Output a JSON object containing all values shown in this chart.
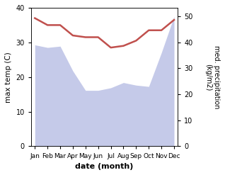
{
  "months": [
    "Jan",
    "Feb",
    "Mar",
    "Apr",
    "May",
    "Jun",
    "Jul",
    "Aug",
    "Sep",
    "Oct",
    "Nov",
    "Dec"
  ],
  "x": [
    0,
    1,
    2,
    3,
    4,
    5,
    6,
    7,
    8,
    9,
    10,
    11
  ],
  "temp_max": [
    37.0,
    35.0,
    35.0,
    32.0,
    31.5,
    31.5,
    28.5,
    29.0,
    30.5,
    33.5,
    33.5,
    36.5
  ],
  "precip_mm": [
    390,
    380,
    385,
    290,
    215,
    215,
    225,
    245,
    235,
    230,
    360,
    500
  ],
  "temp_color": "#c0504d",
  "precip_fill_color": "#c5cae9",
  "xlabel": "date (month)",
  "ylabel_left": "max temp (C)",
  "ylabel_right": "med. precipitation\n(kg/m2)",
  "ylim_left": [
    0,
    40
  ],
  "ylim_right": [
    0,
    533
  ],
  "yticks_left": [
    0,
    10,
    20,
    30,
    40
  ],
  "yticks_right": [
    0,
    100,
    200,
    300,
    400,
    500
  ],
  "ytick_labels_right": [
    "0",
    "10",
    "20",
    "30",
    "40",
    "50"
  ],
  "temp_lw": 1.8,
  "xlim": [
    -0.3,
    11.3
  ]
}
